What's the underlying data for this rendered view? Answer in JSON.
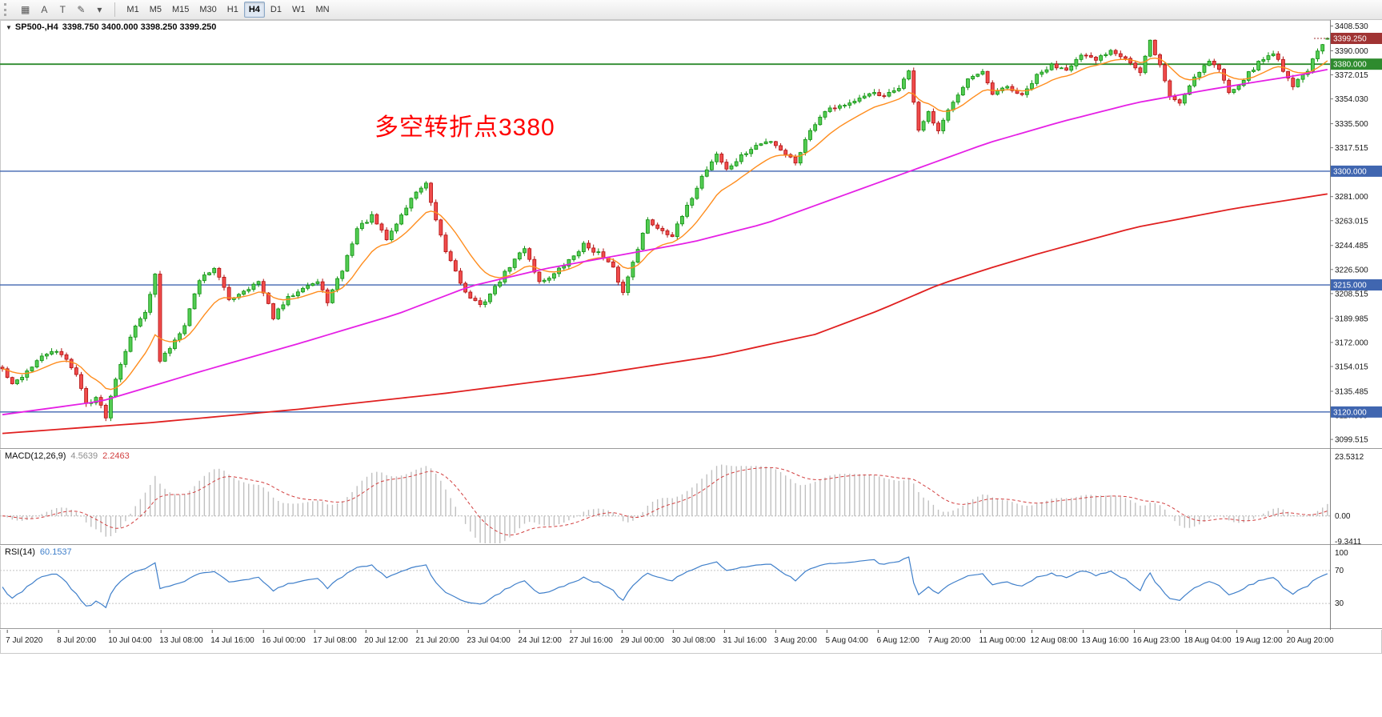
{
  "toolbar": {
    "tools": [
      {
        "name": "chart-grid-tool",
        "glyph": "▦"
      },
      {
        "name": "cursor-tool",
        "glyph": "A"
      },
      {
        "name": "text-tool",
        "glyph": "T"
      },
      {
        "name": "draw-tool",
        "glyph": "✎"
      },
      {
        "name": "draw-tool-caret",
        "glyph": "▾"
      }
    ],
    "timeframes": [
      {
        "label": "M1",
        "active": false
      },
      {
        "label": "M5",
        "active": false
      },
      {
        "label": "M15",
        "active": false
      },
      {
        "label": "M30",
        "active": false
      },
      {
        "label": "H1",
        "active": false
      },
      {
        "label": "H4",
        "active": true
      },
      {
        "label": "D1",
        "active": false
      },
      {
        "label": "W1",
        "active": false
      },
      {
        "label": "MN",
        "active": false
      }
    ]
  },
  "header": {
    "collapse_glyph": "▼",
    "symbol_period": "SP500-,H4",
    "ohlc_text": "3398.750 3400.000 3398.250 3399.250"
  },
  "annotation": {
    "text": "多空转折点3380",
    "color": "#ff0000"
  },
  "indicators": {
    "macd": {
      "label": "MACD(12,26,9)",
      "value_main": "4.5639",
      "value_signal": "2.2463",
      "axis_labels": [
        "23.5312",
        "0.00",
        "-9.3411"
      ]
    },
    "rsi": {
      "label": "RSI(14)",
      "value": "60.1537",
      "axis_labels": [
        "100",
        "70",
        "30"
      ]
    }
  },
  "price_axis": {
    "ticks": [
      "3408.530",
      "3390.000",
      "3372.015",
      "3354.030",
      "3335.500",
      "3317.515",
      "3281.000",
      "3263.015",
      "3244.485",
      "3226.500",
      "3208.515",
      "3189.985",
      "3172.000",
      "3154.015",
      "3135.485",
      "3117.500",
      "3099.515"
    ]
  },
  "time_axis": {
    "labels": [
      "7 Jul 2020",
      "8 Jul 20:00",
      "10 Jul 04:00",
      "13 Jul 08:00",
      "14 Jul 16:00",
      "16 Jul 00:00",
      "17 Jul 08:00",
      "20 Jul 12:00",
      "21 Jul 20:00",
      "23 Jul 04:00",
      "24 Jul 12:00",
      "27 Jul 16:00",
      "29 Jul 00:00",
      "30 Jul 08:00",
      "31 Jul 16:00",
      "3 Aug 20:00",
      "5 Aug 04:00",
      "6 Aug 12:00",
      "7 Aug 20:00",
      "11 Aug 00:00",
      "12 Aug 08:00",
      "13 Aug 16:00",
      "16 Aug 23:00",
      "18 Aug 04:00",
      "19 Aug 12:00",
      "20 Aug 20:00"
    ]
  },
  "chart_data": {
    "type": "candlestick",
    "symbol": "SP500-",
    "timeframe": "H4",
    "current_bar": {
      "open": 3398.75,
      "high": 3400.0,
      "low": 3398.25,
      "close": 3399.25
    },
    "price_range": [
      3093,
      3413
    ],
    "candle_count": 270,
    "colors": {
      "bull_border": "#0f8f0f",
      "bull_fill": "#53cc53",
      "bear_border": "#b01010",
      "bear_fill": "#f04b4b",
      "ma_fast": "#ff8d1e",
      "ma_mid": "#e520e5",
      "ma_slow": "#e02020",
      "macd_hist": "#c0c0c0",
      "macd_signal": "#d24040",
      "rsi_line": "#3f7fca"
    },
    "hlines": [
      {
        "price": 3380.0,
        "label": "3380.000",
        "color": "#2e8b2e"
      },
      {
        "price": 3300.0,
        "label": "3300.000",
        "color": "#4066b0"
      },
      {
        "price": 3215.0,
        "label": "3215.000",
        "color": "#4066b0"
      },
      {
        "price": 3120.0,
        "label": "3120.000",
        "color": "#4066b0"
      }
    ],
    "current_price": {
      "price": 3399.25,
      "label": "3399.250",
      "color": "#a03333"
    },
    "ma_fast_period": 13,
    "macd_range": [
      -10.2,
      24
    ],
    "rsi_range": [
      0,
      100
    ],
    "rsi_levels": [
      70,
      30
    ],
    "close_path": [
      [
        0,
        3152
      ],
      [
        2,
        3140
      ],
      [
        4,
        3147
      ],
      [
        7,
        3158
      ],
      [
        10,
        3166
      ],
      [
        13,
        3160
      ],
      [
        15,
        3148
      ],
      [
        17,
        3126
      ],
      [
        19,
        3131
      ],
      [
        21,
        3117
      ],
      [
        23,
        3146
      ],
      [
        26,
        3177
      ],
      [
        29,
        3196
      ],
      [
        31,
        3222
      ],
      [
        32,
        3158
      ],
      [
        34,
        3168
      ],
      [
        37,
        3186
      ],
      [
        40,
        3219
      ],
      [
        43,
        3228
      ],
      [
        46,
        3204
      ],
      [
        49,
        3211
      ],
      [
        52,
        3217
      ],
      [
        55,
        3191
      ],
      [
        58,
        3205
      ],
      [
        61,
        3214
      ],
      [
        64,
        3217
      ],
      [
        66,
        3203
      ],
      [
        69,
        3226
      ],
      [
        72,
        3257
      ],
      [
        75,
        3266
      ],
      [
        78,
        3249
      ],
      [
        81,
        3267
      ],
      [
        84,
        3285
      ],
      [
        86,
        3290
      ],
      [
        88,
        3262
      ],
      [
        90,
        3240
      ],
      [
        92,
        3226
      ],
      [
        94,
        3209
      ],
      [
        97,
        3199
      ],
      [
        100,
        3213
      ],
      [
        103,
        3229
      ],
      [
        106,
        3243
      ],
      [
        109,
        3217
      ],
      [
        112,
        3223
      ],
      [
        115,
        3233
      ],
      [
        118,
        3245
      ],
      [
        121,
        3239
      ],
      [
        124,
        3227
      ],
      [
        126,
        3209
      ],
      [
        128,
        3233
      ],
      [
        131,
        3263
      ],
      [
        133,
        3258
      ],
      [
        136,
        3252
      ],
      [
        139,
        3273
      ],
      [
        142,
        3296
      ],
      [
        145,
        3313
      ],
      [
        147,
        3301
      ],
      [
        150,
        3311
      ],
      [
        153,
        3319
      ],
      [
        156,
        3323
      ],
      [
        159,
        3313
      ],
      [
        161,
        3307
      ],
      [
        164,
        3331
      ],
      [
        167,
        3346
      ],
      [
        170,
        3349
      ],
      [
        173,
        3351
      ],
      [
        176,
        3359
      ],
      [
        179,
        3355
      ],
      [
        182,
        3363
      ],
      [
        184,
        3374
      ],
      [
        186,
        3331
      ],
      [
        188,
        3343
      ],
      [
        190,
        3329
      ],
      [
        193,
        3353
      ],
      [
        196,
        3369
      ],
      [
        199,
        3373
      ],
      [
        201,
        3357
      ],
      [
        204,
        3363
      ],
      [
        207,
        3356
      ],
      [
        210,
        3371
      ],
      [
        213,
        3379
      ],
      [
        216,
        3377
      ],
      [
        219,
        3386
      ],
      [
        222,
        3383
      ],
      [
        225,
        3391
      ],
      [
        228,
        3385
      ],
      [
        231,
        3373
      ],
      [
        233,
        3397
      ],
      [
        235,
        3379
      ],
      [
        237,
        3356
      ],
      [
        239,
        3351
      ],
      [
        242,
        3371
      ],
      [
        245,
        3383
      ],
      [
        247,
        3376
      ],
      [
        249,
        3359
      ],
      [
        252,
        3369
      ],
      [
        255,
        3381
      ],
      [
        258,
        3389
      ],
      [
        260,
        3376
      ],
      [
        262,
        3364
      ],
      [
        265,
        3376
      ],
      [
        267,
        3389
      ],
      [
        269,
        3399.25
      ]
    ],
    "ma_mid_path": [
      [
        0,
        3118
      ],
      [
        20,
        3128
      ],
      [
        40,
        3150
      ],
      [
        60,
        3171
      ],
      [
        80,
        3193
      ],
      [
        95,
        3214
      ],
      [
        110,
        3227
      ],
      [
        125,
        3237
      ],
      [
        140,
        3247
      ],
      [
        155,
        3261
      ],
      [
        170,
        3281
      ],
      [
        185,
        3301
      ],
      [
        200,
        3321
      ],
      [
        215,
        3337
      ],
      [
        230,
        3351
      ],
      [
        245,
        3361
      ],
      [
        255,
        3367
      ],
      [
        262,
        3371
      ],
      [
        269,
        3376
      ]
    ],
    "ma_slow_path": [
      [
        0,
        3104
      ],
      [
        30,
        3112
      ],
      [
        60,
        3122
      ],
      [
        90,
        3134
      ],
      [
        120,
        3148
      ],
      [
        145,
        3162
      ],
      [
        165,
        3178
      ],
      [
        178,
        3196
      ],
      [
        190,
        3215
      ],
      [
        200,
        3227
      ],
      [
        210,
        3238
      ],
      [
        230,
        3258
      ],
      [
        250,
        3272
      ],
      [
        269,
        3283
      ]
    ]
  }
}
